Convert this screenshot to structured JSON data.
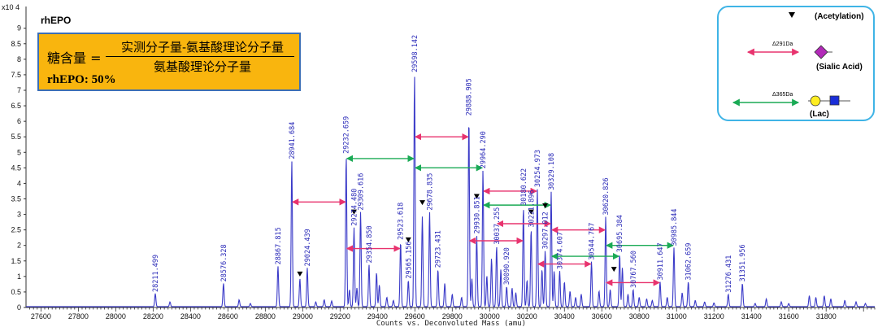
{
  "chart_data": {
    "type": "line",
    "title": "rhEPO",
    "xlabel": "Counts vs. Deconvoluted Mass (amu)",
    "ylabel": "",
    "y_scale_label": "x10 4",
    "xlim": [
      27520,
      32060
    ],
    "ylim": [
      0,
      9.7
    ],
    "x_ticks": [
      27600,
      27800,
      28000,
      28200,
      28400,
      28600,
      28800,
      29000,
      29200,
      29400,
      29600,
      29800,
      30000,
      30200,
      30400,
      30600,
      30800,
      31000,
      31200,
      31400,
      31600,
      31800
    ],
    "y_ticks": [
      0,
      0.5,
      1,
      1.5,
      2,
      2.5,
      3,
      3.5,
      4,
      4.5,
      5,
      5.5,
      6,
      6.5,
      7,
      7.5,
      8,
      8.5,
      9
    ],
    "y_tick_labels": [
      "0",
      "0.5",
      "1",
      "1.5",
      "2",
      "2.5",
      "3",
      "3.5",
      "4",
      "4.5",
      "5",
      "5.5",
      "6",
      "6.5",
      "7",
      "7.5",
      "8",
      "8.5",
      "9"
    ],
    "grid": false,
    "series_color": "#3a3ac8",
    "labeled_peaks": [
      {
        "label": "28211.499",
        "x": 28211.499,
        "y": 0.42
      },
      {
        "label": "28576.328",
        "x": 28576.328,
        "y": 0.75
      },
      {
        "label": "28867.815",
        "x": 28867.815,
        "y": 1.3
      },
      {
        "label": "28941.684",
        "x": 28941.684,
        "y": 4.7
      },
      {
        "label": "29024.439",
        "x": 29024.439,
        "y": 1.25
      },
      {
        "label": "29232.659",
        "x": 29232.659,
        "y": 4.88
      },
      {
        "label": "29274.480",
        "x": 29274.48,
        "y": 2.55
      },
      {
        "label": "29309.616",
        "x": 29309.616,
        "y": 3.05
      },
      {
        "label": "29354.850",
        "x": 29354.85,
        "y": 1.35
      },
      {
        "label": "29523.618",
        "x": 29523.618,
        "y": 2.1
      },
      {
        "label": "29565.156",
        "x": 29565.156,
        "y": 0.85
      },
      {
        "label": "29598.142",
        "x": 29598.142,
        "y": 7.5
      },
      {
        "label": "29678.835",
        "x": 29678.835,
        "y": 3.05
      },
      {
        "label": "29723.431",
        "x": 29723.431,
        "y": 1.2
      },
      {
        "label": "29888.905",
        "x": 29888.905,
        "y": 6.1
      },
      {
        "label": "29930.851",
        "x": 29930.851,
        "y": 2.3
      },
      {
        "label": "29964.290",
        "x": 29964.29,
        "y": 4.4
      },
      {
        "label": "30037.255",
        "x": 30037.255,
        "y": 1.95
      },
      {
        "label": "30090.920",
        "x": 30090.92,
        "y": 0.65
      },
      {
        "label": "30180.622",
        "x": 30180.622,
        "y": 3.2
      },
      {
        "label": "30221.896",
        "x": 30221.896,
        "y": 2.5
      },
      {
        "label": "30254.973",
        "x": 30254.973,
        "y": 3.8
      },
      {
        "label": "30297.012",
        "x": 30297.012,
        "y": 1.8
      },
      {
        "label": "30329.108",
        "x": 30329.108,
        "y": 3.7
      },
      {
        "label": "30374.607",
        "x": 30374.607,
        "y": 1.15
      },
      {
        "label": "30544.767",
        "x": 30544.767,
        "y": 1.45
      },
      {
        "label": "30620.826",
        "x": 30620.826,
        "y": 2.9
      },
      {
        "label": "30695.384",
        "x": 30695.384,
        "y": 1.7
      },
      {
        "label": "30767.560",
        "x": 30767.56,
        "y": 0.55
      },
      {
        "label": "30911.647",
        "x": 30911.647,
        "y": 0.8
      },
      {
        "label": "30985.844",
        "x": 30985.844,
        "y": 1.9
      },
      {
        "label": "31062.659",
        "x": 31062.659,
        "y": 0.8
      },
      {
        "label": "31276.431",
        "x": 31276.431,
        "y": 0.4
      },
      {
        "label": "31351.956",
        "x": 31351.956,
        "y": 0.75
      }
    ],
    "minor_peaks": [
      {
        "x": 28290,
        "y": 0.15
      },
      {
        "x": 28660,
        "y": 0.22
      },
      {
        "x": 28720,
        "y": 0.1
      },
      {
        "x": 28985,
        "y": 0.9
      },
      {
        "x": 29070,
        "y": 0.15
      },
      {
        "x": 29115,
        "y": 0.22
      },
      {
        "x": 29155,
        "y": 0.18
      },
      {
        "x": 29250,
        "y": 0.55
      },
      {
        "x": 29290,
        "y": 0.6
      },
      {
        "x": 29395,
        "y": 1.1
      },
      {
        "x": 29410,
        "y": 0.7
      },
      {
        "x": 29450,
        "y": 0.3
      },
      {
        "x": 29485,
        "y": 0.2
      },
      {
        "x": 29640,
        "y": 2.9
      },
      {
        "x": 29760,
        "y": 0.75
      },
      {
        "x": 29800,
        "y": 0.4
      },
      {
        "x": 29850,
        "y": 0.3
      },
      {
        "x": 29905,
        "y": 0.9
      },
      {
        "x": 29985,
        "y": 1.0
      },
      {
        "x": 30010,
        "y": 1.55
      },
      {
        "x": 30060,
        "y": 1.2
      },
      {
        "x": 30120,
        "y": 0.6
      },
      {
        "x": 30140,
        "y": 0.45
      },
      {
        "x": 30200,
        "y": 0.85
      },
      {
        "x": 30280,
        "y": 1.2
      },
      {
        "x": 30345,
        "y": 1.15
      },
      {
        "x": 30400,
        "y": 0.8
      },
      {
        "x": 30430,
        "y": 0.5
      },
      {
        "x": 30460,
        "y": 0.3
      },
      {
        "x": 30490,
        "y": 0.4
      },
      {
        "x": 30585,
        "y": 0.5
      },
      {
        "x": 30645,
        "y": 0.55
      },
      {
        "x": 30710,
        "y": 1.25
      },
      {
        "x": 30740,
        "y": 0.4
      },
      {
        "x": 30800,
        "y": 0.3
      },
      {
        "x": 30840,
        "y": 0.25
      },
      {
        "x": 30870,
        "y": 0.2
      },
      {
        "x": 30950,
        "y": 0.3
      },
      {
        "x": 31030,
        "y": 0.45
      },
      {
        "x": 31100,
        "y": 0.2
      },
      {
        "x": 31150,
        "y": 0.15
      },
      {
        "x": 31200,
        "y": 0.12
      },
      {
        "x": 31420,
        "y": 0.1
      },
      {
        "x": 31480,
        "y": 0.25
      },
      {
        "x": 31560,
        "y": 0.15
      },
      {
        "x": 31600,
        "y": 0.1
      },
      {
        "x": 31710,
        "y": 0.35
      },
      {
        "x": 31745,
        "y": 0.3
      },
      {
        "x": 31790,
        "y": 0.35
      },
      {
        "x": 31825,
        "y": 0.25
      },
      {
        "x": 31900,
        "y": 0.2
      },
      {
        "x": 31960,
        "y": 0.15
      },
      {
        "x": 32010,
        "y": 0.1
      }
    ],
    "acetylation_markers": [
      {
        "x": 28985,
        "y": 1.0
      },
      {
        "x": 29274.48,
        "y": 3.0
      },
      {
        "x": 29565.156,
        "y": 2.1
      },
      {
        "x": 29640,
        "y": 3.3
      },
      {
        "x": 29930.851,
        "y": 3.5
      },
      {
        "x": 30221.896,
        "y": 3.0
      },
      {
        "x": 30297.012,
        "y": 3.2
      },
      {
        "x": 30665,
        "y": 1.15
      }
    ],
    "sialic_arrows": [
      {
        "x1": 28941.684,
        "x2": 29232.659,
        "y": 3.4
      },
      {
        "x1": 29232.659,
        "x2": 29523.618,
        "y": 1.9
      },
      {
        "x1": 29598.142,
        "x2": 29888.905,
        "y": 5.5
      },
      {
        "x1": 29888.905,
        "x2": 30180.622,
        "y": 2.15
      },
      {
        "x1": 29964.29,
        "x2": 30254.973,
        "y": 3.75
      },
      {
        "x1": 30037.255,
        "x2": 30329.108,
        "y": 2.7
      },
      {
        "x1": 30329.108,
        "x2": 30620.826,
        "y": 2.5
      },
      {
        "x1": 30254.973,
        "x2": 30544.767,
        "y": 1.4
      },
      {
        "x1": 30620.826,
        "x2": 30911.647,
        "y": 0.8
      }
    ],
    "lac_arrows": [
      {
        "x1": 29232.659,
        "x2": 29598.142,
        "y": 4.8
      },
      {
        "x1": 29598.142,
        "x2": 29964.29,
        "y": 4.5
      },
      {
        "x1": 29964.29,
        "x2": 30329.108,
        "y": 3.3
      },
      {
        "x1": 30329.108,
        "x2": 30695.384,
        "y": 1.65
      },
      {
        "x1": 30620.826,
        "x2": 30985.844,
        "y": 2.0
      }
    ]
  },
  "formula": {
    "lhs": "糖含量 =",
    "numerator": "实测分子量-氨基酸理论分子量",
    "denominator": "氨基酸理论分子量",
    "result": "rhEPO: 50%"
  },
  "legend": {
    "acetylation": "(Acetylation)",
    "sialic_delta": "Δ291Da",
    "sialic_label": "(Sialic Acid)",
    "lac_delta": "Δ365Da",
    "lac_label": "(Lac)",
    "colors": {
      "sialic": "#e8336e",
      "lac": "#1aaa55",
      "diamond": "#b22ab8",
      "circle": "#ffee22",
      "square": "#1a2ed8"
    }
  }
}
